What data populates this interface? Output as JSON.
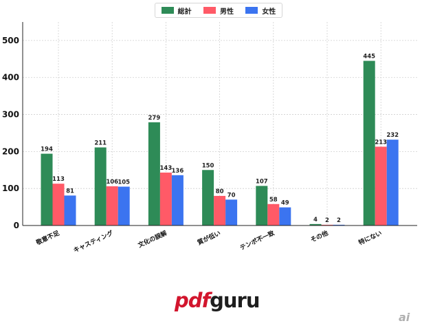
{
  "chart_data": {
    "type": "bar",
    "categories": [
      "敬意不足",
      "キャスティング",
      "文化の誤解",
      "質が低い",
      "テンポ不一致",
      "その他",
      "特にない"
    ],
    "series": [
      {
        "name": "総計",
        "values": [
          194,
          211,
          279,
          150,
          107,
          4,
          445
        ],
        "color": "#2e8b57"
      },
      {
        "name": "男性",
        "values": [
          113,
          106,
          143,
          80,
          58,
          2,
          213
        ],
        "color": "#ff5a67"
      },
      {
        "name": "女性",
        "values": [
          81,
          105,
          136,
          70,
          49,
          2,
          232
        ],
        "color": "#3b74f0"
      }
    ],
    "ylim": [
      0,
      550
    ],
    "yticks": [
      0,
      100,
      200,
      300,
      400,
      500
    ],
    "grid": true,
    "legend_position": "top-center"
  },
  "legend": {
    "items": [
      {
        "label": "総計",
        "color": "#2e8b57"
      },
      {
        "label": "男性",
        "color": "#ff5a67"
      },
      {
        "label": "女性",
        "color": "#3b74f0"
      }
    ]
  },
  "logo": {
    "part1": "pdf",
    "part2": "guru"
  },
  "watermark": "ai"
}
